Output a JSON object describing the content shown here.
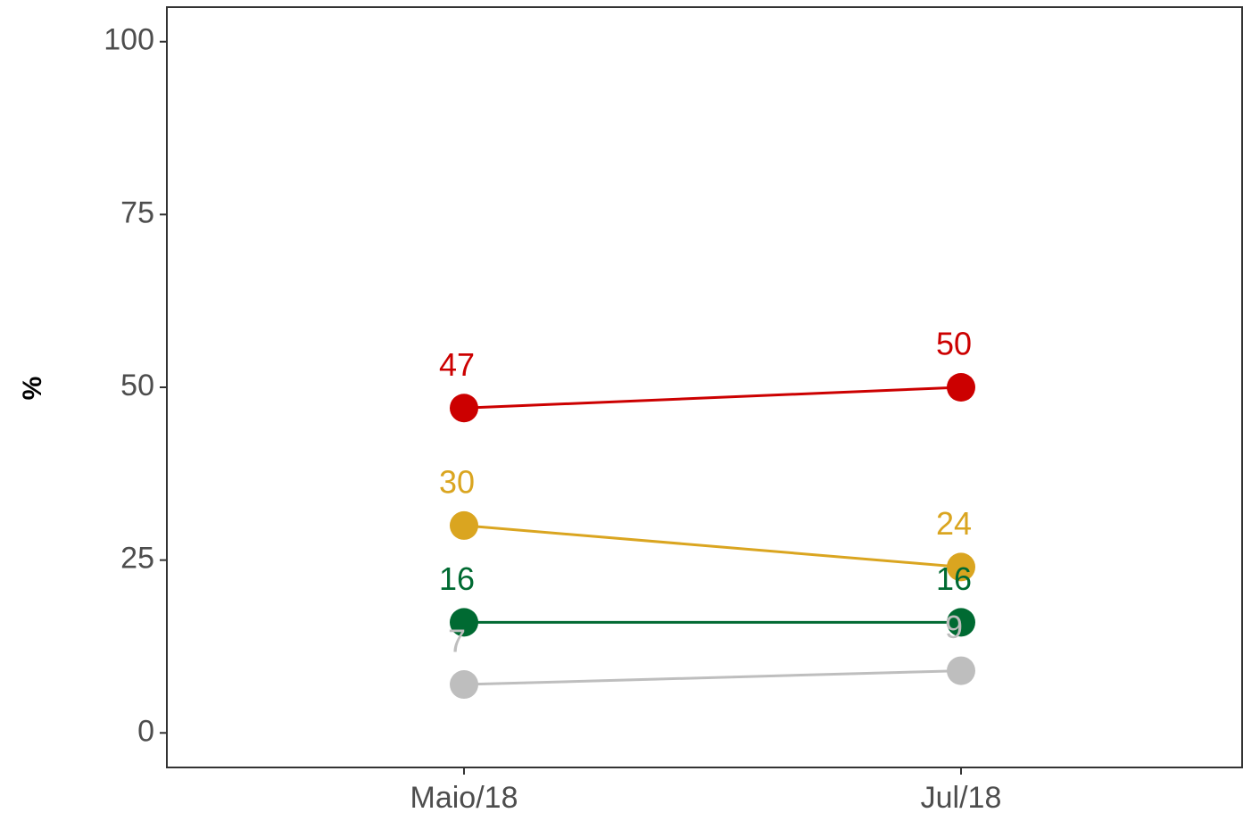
{
  "chart_data": {
    "type": "line",
    "y_label": "%",
    "categories": [
      "Maio/18",
      "Jul/18"
    ],
    "series": [
      {
        "color": "#cc0000",
        "values": [
          47,
          50
        ]
      },
      {
        "color": "#daa520",
        "values": [
          30,
          24
        ]
      },
      {
        "color": "#006a32",
        "values": [
          16,
          16
        ]
      },
      {
        "color": "#bebebe",
        "values": [
          7,
          9
        ]
      }
    ],
    "ylim": [
      -5,
      105
    ],
    "yticks": [
      0,
      25,
      50,
      75,
      100
    ],
    "grid": false
  }
}
